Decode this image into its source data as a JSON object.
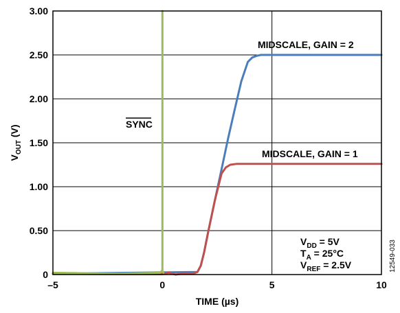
{
  "chart_data": {
    "type": "line",
    "xlabel": "TIME (µs)",
    "ylabel": {
      "main": "V",
      "sub": "OUT",
      "unit": " (V)"
    },
    "xlim": [
      -5,
      10
    ],
    "ylim": [
      0,
      3.0
    ],
    "xticks": [
      -5,
      0,
      5,
      10
    ],
    "xtick_labels": [
      "–5",
      "0",
      "5",
      "10"
    ],
    "yticks": [
      0,
      0.5,
      1.0,
      1.5,
      2.0,
      2.5,
      3.0
    ],
    "ytick_labels": [
      "0",
      "0.50",
      "1.00",
      "1.50",
      "2.00",
      "2.50",
      "3.00"
    ],
    "grid": true,
    "series": [
      {
        "name": "MIDSCALE, GAIN = 2",
        "color": "#4a7ebb",
        "x": [
          -5,
          1.6,
          1.75,
          1.9,
          2.1,
          2.4,
          2.7,
          3.0,
          3.3,
          3.6,
          3.9,
          4.1,
          4.3,
          4.5,
          4.7,
          5.0,
          6.0,
          8.0,
          10.0
        ],
        "y": [
          0.01,
          0.03,
          0.1,
          0.25,
          0.5,
          0.85,
          1.2,
          1.55,
          1.88,
          2.2,
          2.42,
          2.47,
          2.49,
          2.5,
          2.5,
          2.5,
          2.5,
          2.5,
          2.5
        ]
      },
      {
        "name": "MIDSCALE, GAIN = 1",
        "color": "#c0504d",
        "x": [
          -5,
          -2,
          0,
          0.3,
          0.6,
          1.0,
          1.4,
          1.6,
          1.75,
          1.9,
          2.1,
          2.4,
          2.7,
          2.9,
          3.1,
          3.4,
          4.0,
          6.0,
          10.0
        ],
        "y": [
          0.01,
          0.005,
          0.005,
          0.02,
          0.0,
          0.015,
          0.01,
          0.03,
          0.1,
          0.25,
          0.5,
          0.85,
          1.15,
          1.22,
          1.25,
          1.26,
          1.26,
          1.26,
          1.26
        ]
      },
      {
        "name": "SYNC",
        "color": "#9bbb59",
        "x": [
          -5,
          -2,
          -0.1,
          0,
          0,
          0,
          0.05
        ],
        "y": [
          0.02,
          0.01,
          0.02,
          0.05,
          3.0,
          0.03,
          0.02
        ]
      }
    ],
    "annotations": {
      "gain2": "MIDSCALE, GAIN = 2",
      "gain1": "MIDSCALE, GAIN = 1",
      "sync": "SYNC",
      "vdd": {
        "main": "V",
        "sub": "DD",
        "rest": " = 5V"
      },
      "ta": {
        "main": "T",
        "sub": "A",
        "rest": " = 25°C"
      },
      "vref": {
        "main": "V",
        "sub": "REF",
        "rest": " = 2.5V"
      }
    },
    "figure_id": "12549-033"
  }
}
